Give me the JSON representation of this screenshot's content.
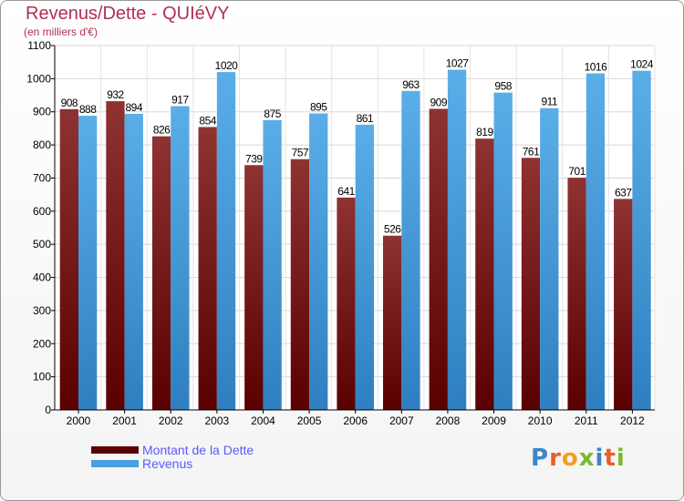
{
  "chart_data": {
    "type": "bar",
    "title": "Revenus/Dette - QUIéVY",
    "subtitle": "(en milliers d'€)",
    "categories": [
      "2000",
      "2001",
      "2002",
      "2003",
      "2004",
      "2005",
      "2006",
      "2007",
      "2008",
      "2009",
      "2010",
      "2011",
      "2012"
    ],
    "series": [
      {
        "name": "Montant de la Dette",
        "color": "#7a1a1a",
        "values": [
          908,
          932,
          826,
          854,
          739,
          757,
          641,
          526,
          909,
          819,
          761,
          701,
          637
        ]
      },
      {
        "name": "Revenus",
        "color": "#4a9fe0",
        "values": [
          888,
          894,
          917,
          1020,
          875,
          895,
          861,
          963,
          1027,
          958,
          911,
          1016,
          1024
        ]
      }
    ],
    "ylim": [
      0,
      1100
    ],
    "yticks": [
      0,
      100,
      200,
      300,
      400,
      500,
      600,
      700,
      800,
      900,
      1000,
      1100
    ],
    "grid": true
  },
  "logo": {
    "text": "Proxiti"
  }
}
